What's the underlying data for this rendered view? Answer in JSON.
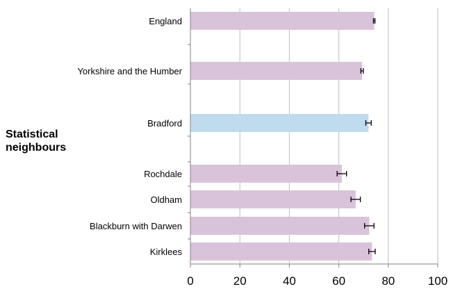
{
  "side_label": "Statistical\nneighbours",
  "chart_data": {
    "type": "bar",
    "orientation": "horizontal",
    "xlim": [
      0,
      100
    ],
    "x_ticks": [
      "0",
      "20",
      "40",
      "60",
      "80",
      "100"
    ],
    "grid": true,
    "bars": [
      {
        "category": "England",
        "value": 74.3,
        "err_low": 74.0,
        "err_high": 74.6,
        "color": "#d9c3da"
      },
      {
        "category": "Yorkshire and the Humber",
        "value": 69.4,
        "err_low": 68.9,
        "err_high": 69.9,
        "color": "#d9c3da"
      },
      {
        "category": "Bradford",
        "value": 72.0,
        "err_low": 70.9,
        "err_high": 73.1,
        "color": "#bfdcee"
      },
      {
        "category": "Rochdale",
        "value": 61.2,
        "err_low": 59.3,
        "err_high": 63.1,
        "color": "#d9c3da"
      },
      {
        "category": "Oldham",
        "value": 66.8,
        "err_low": 64.9,
        "err_high": 68.7,
        "color": "#d9c3da"
      },
      {
        "category": "Blackburn with Darwen",
        "value": 72.3,
        "err_low": 70.4,
        "err_high": 74.2,
        "color": "#d9c3da"
      },
      {
        "category": "Kirklees",
        "value": 73.4,
        "err_low": 72.1,
        "err_high": 74.7,
        "color": "#d9c3da"
      }
    ]
  }
}
